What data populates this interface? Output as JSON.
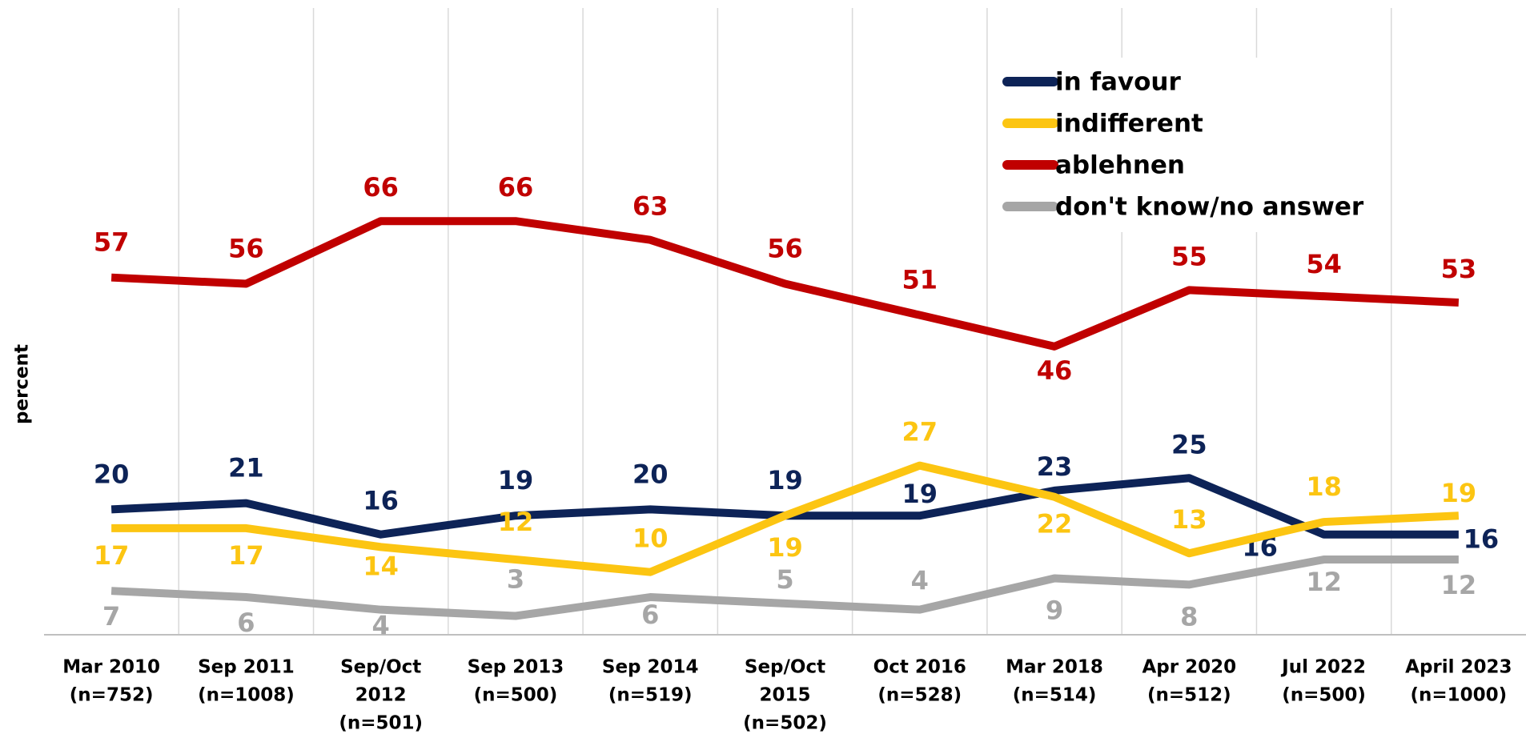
{
  "chart_data": {
    "type": "line",
    "y_label": "percent",
    "categories": [
      [
        "Mar 2010",
        "(n=752)"
      ],
      [
        "Sep 2011",
        "(n=1008)"
      ],
      [
        "Sep/Oct",
        "2012",
        "(n=501)"
      ],
      [
        "Sep 2013",
        "(n=500)"
      ],
      [
        "Sep 2014",
        "(n=519)"
      ],
      [
        "Sep/Oct",
        "2015",
        "(n=502)"
      ],
      [
        "Oct 2016",
        "(n=528)"
      ],
      [
        "Mar 2018",
        "(n=514)"
      ],
      [
        "Apr 2020",
        "(n=512)"
      ],
      [
        "Jul 2022",
        "(n=500)"
      ],
      [
        "April 2023",
        "(n=1000)"
      ]
    ],
    "series": [
      {
        "name": "in favour",
        "color": "#0d2357",
        "values": [
          20,
          21,
          16,
          19,
          20,
          19,
          19,
          23,
          25,
          16,
          16
        ]
      },
      {
        "name": "indifferent",
        "color": "#fcc512",
        "values": [
          17,
          17,
          14,
          12,
          10,
          19,
          27,
          22,
          13,
          18,
          19
        ]
      },
      {
        "name": "ablehnen",
        "color": "#c00000",
        "values": [
          57,
          56,
          66,
          66,
          63,
          56,
          51,
          46,
          55,
          54,
          53
        ]
      },
      {
        "name": "don't know/no answer",
        "color": "#a6a6a6",
        "values": [
          7,
          6,
          4,
          3,
          6,
          5,
          4,
          9,
          8,
          12,
          12
        ]
      }
    ],
    "ylim": [
      0,
      100
    ],
    "grid": true,
    "legend": "upper right"
  }
}
